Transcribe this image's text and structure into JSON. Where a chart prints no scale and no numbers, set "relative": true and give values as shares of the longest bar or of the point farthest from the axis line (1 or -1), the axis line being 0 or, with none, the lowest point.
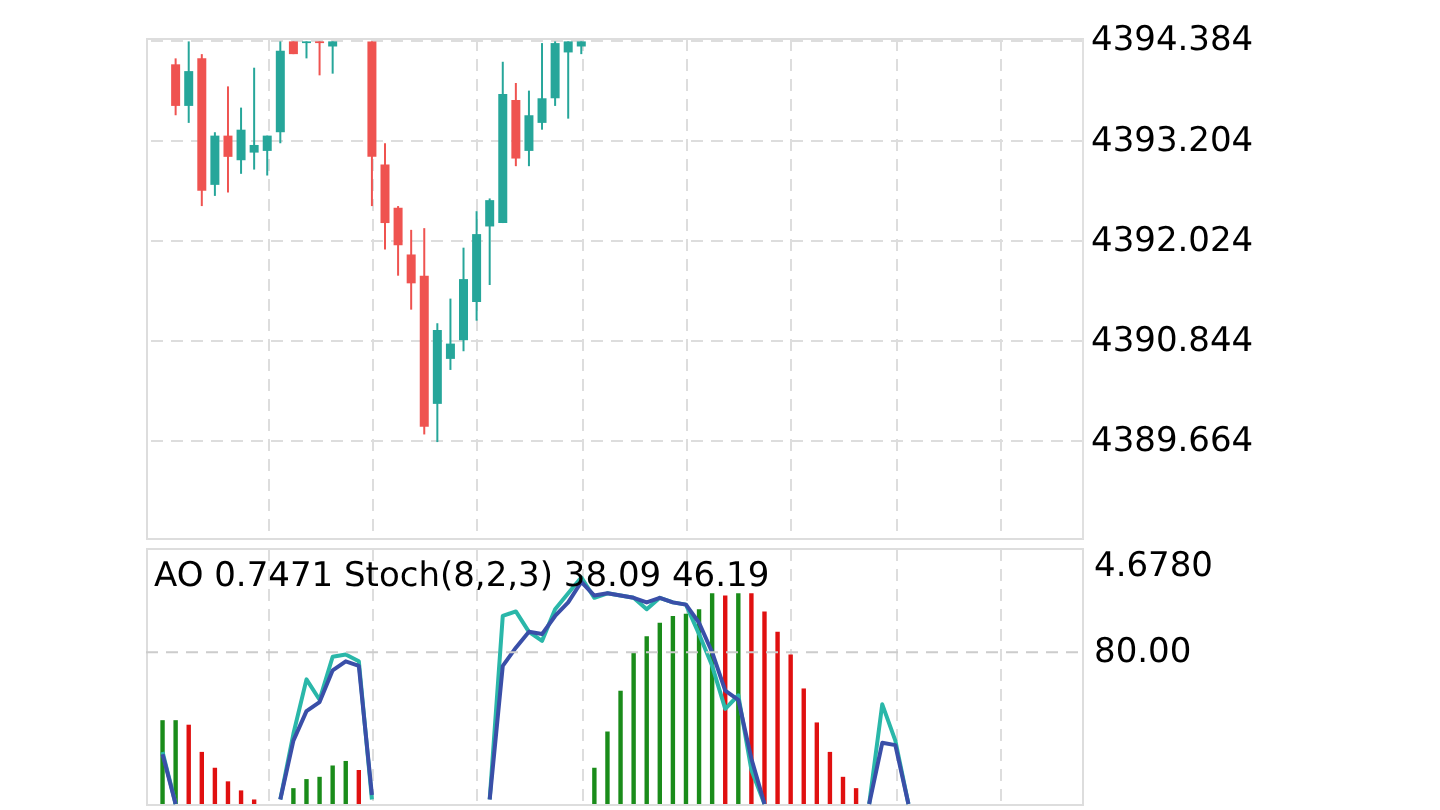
{
  "chart_data": [
    {
      "type": "candlestick",
      "categories": [
        null,
        null,
        null,
        null,
        null,
        null,
        null,
        null,
        null,
        null,
        null,
        null,
        null,
        null,
        null,
        null,
        null,
        null,
        null,
        null,
        null,
        null,
        null,
        null,
        null,
        null,
        null,
        null,
        null,
        null,
        null,
        null,
        null,
        null,
        null,
        null,
        null,
        null,
        null,
        null,
        null,
        null,
        null,
        null,
        null,
        null,
        null,
        null,
        null,
        null,
        null,
        null,
        null,
        null,
        null,
        null,
        null,
        null,
        null,
        null,
        null,
        null,
        null,
        null,
        null,
        null,
        null,
        null,
        null,
        null
      ],
      "ohlc": [
        null,
        [
          4394.09,
          4394.16,
          4393.49,
          4393.6
        ],
        [
          4393.6,
          4394.36,
          4393.4,
          4394.01
        ],
        [
          4394.16,
          4394.21,
          4392.42,
          4392.6
        ],
        [
          4392.67,
          4393.29,
          4392.54,
          4393.25
        ],
        [
          4393.25,
          4393.83,
          4392.58,
          4393.0
        ],
        [
          4392.96,
          4393.58,
          4392.8,
          4393.32
        ],
        [
          4393.05,
          4394.05,
          4392.85,
          4393.14
        ],
        [
          4393.07,
          4393.25,
          4392.78,
          4393.25
        ],
        [
          4393.29,
          4394.36,
          4393.16,
          4394.25
        ],
        [
          4394.36,
          4394.36,
          4394.21,
          4394.21
        ],
        [
          4394.34,
          4394.36,
          4394.16,
          4394.36
        ],
        [
          4394.36,
          4394.36,
          4393.96,
          4394.34
        ],
        [
          4394.3,
          4394.36,
          4393.98,
          4394.36
        ],
        null,
        null,
        [
          4394.36,
          4394.36,
          4392.42,
          4393.0
        ],
        [
          4392.91,
          4393.16,
          4391.91,
          4392.22
        ],
        [
          4392.4,
          4392.42,
          4391.6,
          4391.96
        ],
        [
          4391.85,
          4392.14,
          4391.2,
          4391.51
        ],
        [
          4391.6,
          4392.16,
          4389.73,
          4389.82
        ],
        [
          4390.09,
          4391.04,
          4389.64,
          4390.96
        ],
        [
          4390.62,
          4391.33,
          4390.49,
          4390.8
        ],
        [
          4390.84,
          4391.93,
          4390.71,
          4391.56
        ],
        [
          4391.29,
          4392.36,
          4391.07,
          4392.09
        ],
        [
          4392.18,
          4392.51,
          4391.49,
          4392.49
        ],
        [
          4392.22,
          4394.12,
          4392.22,
          4393.74
        ],
        [
          4393.67,
          4393.87,
          4392.89,
          4392.98
        ],
        [
          4393.07,
          4393.78,
          4392.89,
          4393.49
        ],
        [
          4393.4,
          4394.34,
          4393.32,
          4393.69
        ],
        [
          4393.69,
          4394.36,
          4393.6,
          4394.34
        ],
        [
          4394.23,
          4394.36,
          4393.45,
          4394.36
        ],
        [
          4394.3,
          4394.36,
          4394.21,
          4394.36
        ],
        null,
        null,
        null,
        null,
        null,
        null,
        null,
        null,
        null,
        null,
        null,
        null,
        null,
        null,
        null,
        null,
        null,
        null,
        null,
        null,
        null,
        null,
        null,
        null,
        null,
        null,
        null,
        null,
        null,
        null,
        null,
        null,
        null,
        null,
        null,
        null,
        null
      ],
      "colors": [
        null,
        "#ef5350",
        "#26a69a",
        "#ef5350",
        "#26a69a",
        "#ef5350",
        "#26a69a",
        "#26a69a",
        "#26a69a",
        "#26a69a",
        "#ef5350",
        "#26a69a",
        "#ef5350",
        "#26a69a",
        null,
        null,
        "#ef5350",
        "#ef5350",
        "#ef5350",
        "#ef5350",
        "#ef5350",
        "#26a69a",
        "#26a69a",
        "#26a69a",
        "#26a69a",
        "#26a69a",
        "#26a69a",
        "#ef5350",
        "#26a69a",
        "#26a69a",
        "#26a69a",
        "#26a69a",
        "#26a69a",
        null,
        null,
        null,
        null,
        null,
        null,
        null,
        null,
        null,
        null,
        null,
        null,
        null,
        null,
        null,
        null,
        null,
        null,
        null,
        null,
        null,
        null,
        null,
        null,
        null,
        null,
        null,
        null,
        null,
        null,
        null,
        null,
        null,
        null,
        null,
        null,
        null
      ],
      "ylim": [
        4388.51,
        4394.4
      ],
      "yticks": [
        4389.664,
        4390.844,
        4392.024,
        4393.204,
        4394.384
      ],
      "grid": true
    },
    {
      "type": "bar",
      "relative": true,
      "categories": [
        null,
        null,
        null,
        null,
        null,
        null,
        null,
        null,
        null,
        null,
        null,
        null,
        null,
        null,
        null,
        null,
        null,
        null,
        null,
        null,
        null,
        null,
        null,
        null,
        null,
        null,
        null,
        null,
        null,
        null,
        null,
        null,
        null,
        null,
        null,
        null,
        null,
        null,
        null,
        null,
        null,
        null,
        null,
        null,
        null,
        null,
        null,
        null,
        null,
        null,
        null,
        null,
        null,
        null,
        null,
        null,
        null,
        null,
        null,
        null,
        null,
        null,
        null,
        null,
        null,
        null,
        null,
        null,
        null,
        null
      ],
      "series": [
        {
          "type": "bar",
          "colors": [
            "#1a8c1a",
            "#1a8c1a",
            "#e01010",
            "#e01010",
            "#e01010",
            "#e01010",
            "#e01010",
            "#e01010",
            null,
            null,
            "#1a8c1a",
            "#1a8c1a",
            "#1a8c1a",
            "#1a8c1a",
            "#1a8c1a",
            "#e01010",
            null,
            null,
            null,
            null,
            null,
            null,
            null,
            null,
            null,
            null,
            null,
            null,
            null,
            null,
            null,
            null,
            null,
            "#1a8c1a",
            "#1a8c1a",
            "#1a8c1a",
            "#1a8c1a",
            "#1a8c1a",
            "#1a8c1a",
            "#1a8c1a",
            "#1a8c1a",
            "#1a8c1a",
            "#1a8c1a",
            "#e01010",
            "#1a8c1a",
            "#e01010",
            "#e01010",
            "#e01010",
            "#e01010",
            "#e01010",
            "#e01010",
            "#e01010",
            "#e01010",
            "#e01010",
            null,
            null,
            null,
            null,
            null,
            null,
            null,
            null,
            null,
            null,
            null,
            null,
            null,
            null,
            null,
            null
          ],
          "values": [
            0.37,
            0.37,
            0.35,
            0.23,
            0.16,
            0.1,
            0.06,
            0.02,
            null,
            null,
            0.07,
            0.11,
            0.12,
            0.17,
            0.19,
            0.15,
            null,
            null,
            null,
            null,
            null,
            null,
            null,
            null,
            null,
            null,
            null,
            null,
            null,
            null,
            null,
            null,
            null,
            0.16,
            0.32,
            0.5,
            0.67,
            0.74,
            0.8,
            0.83,
            0.84,
            0.86,
            0.93,
            0.92,
            0.93,
            0.93,
            0.85,
            0.76,
            0.66,
            0.51,
            0.36,
            0.23,
            0.12,
            0.07,
            null,
            null,
            null,
            null,
            null,
            null,
            null,
            null,
            null,
            null,
            null,
            null,
            null,
            null,
            null,
            null
          ]
        },
        {
          "type": "line",
          "color": "#2ab7a9",
          "values": [
            0.23,
            0,
            null,
            null,
            null,
            null,
            null,
            null,
            null,
            0.02,
            0.31,
            0.55,
            0.46,
            0.65,
            0.66,
            0.63,
            0.02,
            null,
            null,
            null,
            null,
            null,
            null,
            null,
            null,
            0.02,
            0.83,
            0.85,
            0.76,
            0.72,
            0.86,
            0.93,
            1.0,
            0.91,
            0.93,
            0.92,
            0.91,
            0.86,
            0.91,
            0.89,
            0.88,
            0.75,
            0.61,
            0.42,
            0.48,
            0.15,
            0,
            null,
            null,
            null,
            null,
            null,
            null,
            null,
            0,
            0.44,
            0.28,
            0,
            null,
            null,
            null,
            null,
            null,
            null,
            null,
            null,
            null,
            null,
            null,
            null
          ]
        },
        {
          "type": "line",
          "color": "#3a4fa8",
          "values": [
            0.22,
            0,
            null,
            null,
            null,
            null,
            null,
            null,
            null,
            0.02,
            0.28,
            0.41,
            0.45,
            0.59,
            0.63,
            0.61,
            0.04,
            null,
            null,
            null,
            null,
            null,
            null,
            null,
            null,
            0.02,
            0.61,
            0.69,
            0.76,
            0.75,
            0.83,
            0.89,
            0.98,
            0.92,
            0.93,
            0.92,
            0.91,
            0.89,
            0.91,
            0.89,
            0.88,
            0.8,
            0.67,
            0.5,
            0.46,
            0.2,
            0,
            null,
            null,
            null,
            null,
            null,
            null,
            null,
            0,
            0.27,
            0.26,
            0,
            null,
            null,
            null,
            null,
            null,
            null,
            null,
            null,
            null,
            null,
            null,
            null
          ]
        }
      ],
      "ref_lines": [
        {
          "axis": "y",
          "value": 0.67
        }
      ],
      "annotations": [
        "AO 0.7471 Stoch(8,2,3) 38.09 46.19",
        "4.6780",
        "80.00"
      ],
      "grid": "x"
    }
  ]
}
